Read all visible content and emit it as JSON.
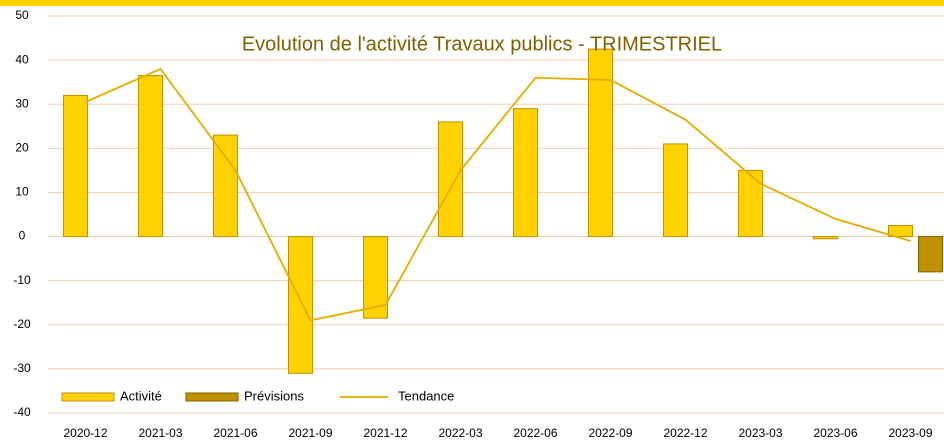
{
  "chart_data": {
    "type": "bar",
    "title": "Evolution  de l'activité  Travaux  publics - TRIMESTRIEL",
    "categories": [
      "2020-12",
      "2021-03",
      "2021-06",
      "2021-09",
      "2021-12",
      "2022-03",
      "2022-06",
      "2022-09",
      "2022-12",
      "2023-03",
      "2023-06",
      "2023-09"
    ],
    "series": [
      {
        "name": "Activité",
        "type": "bar",
        "color": "#ffd200",
        "values": [
          32,
          36.5,
          23,
          -31,
          -18.5,
          26,
          29,
          42.5,
          21,
          15,
          -0.5,
          2.5
        ]
      },
      {
        "name": "Prévisions",
        "type": "bar",
        "color": "#bf9000",
        "values": [
          null,
          null,
          null,
          null,
          null,
          null,
          null,
          null,
          null,
          null,
          null,
          -8
        ]
      },
      {
        "name": "Tendance",
        "type": "line",
        "color": "#e3ac00",
        "values": [
          30.5,
          38,
          15,
          -19,
          -15.5,
          15,
          36,
          35.5,
          26.5,
          12,
          4,
          -1
        ]
      }
    ],
    "ylim": [
      -40,
      50
    ],
    "yticks": [
      -40,
      -30,
      -20,
      -10,
      0,
      10,
      20,
      30,
      40,
      50
    ],
    "grid": true,
    "legend": "bottom-left"
  }
}
